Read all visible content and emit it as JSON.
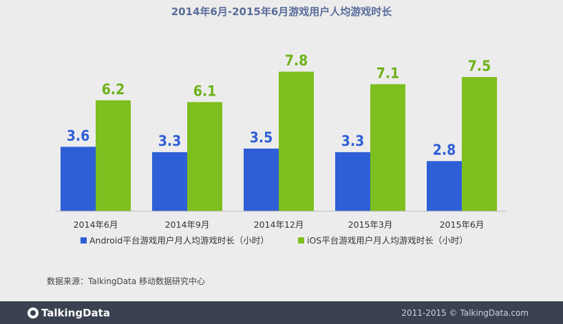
{
  "chart_data": {
    "type": "bar",
    "title": "2014年6月-2015年6月游戏用户人均游戏时长",
    "categories": [
      "2014年6月",
      "2014年9月",
      "2014年12月",
      "2015年3月",
      "2015年6月"
    ],
    "series": [
      {
        "name": "Android平台游戏用户月人均游戏时长（小时）",
        "values": [
          3.6,
          3.3,
          3.5,
          3.3,
          2.8
        ],
        "color": "#2f5fd6",
        "label_color": "#2f5fd6"
      },
      {
        "name": "iOS平台游戏用户月人均游戏时长（小时）",
        "values": [
          6.2,
          6.1,
          7.8,
          7.1,
          7.5
        ],
        "color": "#7dbf1e",
        "label_color": "#6fb21a"
      }
    ],
    "ylim": [
      0,
      9.5
    ],
    "grid": false,
    "legend": "bottom"
  },
  "source_text": "数据来源：TalkingData 移动数据研究中心",
  "footer": {
    "logo_text": "TalkingData",
    "copyright": "2011-2015 © TalkingData.com",
    "bg_color": "#3a4150"
  }
}
